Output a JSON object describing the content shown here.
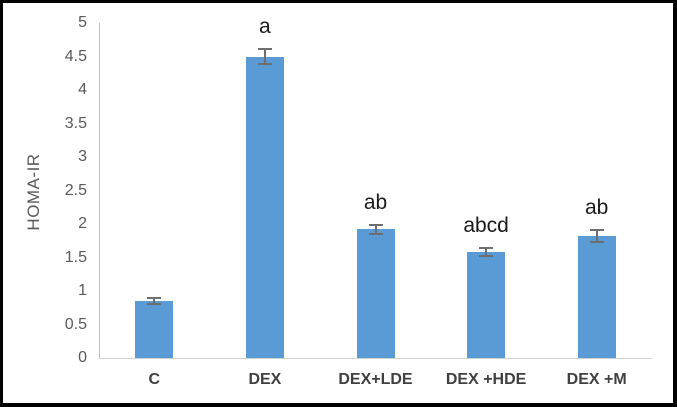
{
  "chart_data": {
    "type": "bar",
    "title": "",
    "xlabel": "",
    "ylabel": "HOMA-IR",
    "categories": [
      "C",
      "DEX",
      "DEX+LDE",
      "DEX +HDE",
      "DEX +M"
    ],
    "values": [
      0.85,
      4.5,
      1.92,
      1.58,
      1.82
    ],
    "error_bars": [
      0.06,
      0.12,
      0.08,
      0.08,
      0.1
    ],
    "annotations": [
      "",
      "a",
      "ab",
      "abcd",
      "ab"
    ],
    "ylim": [
      0,
      5
    ],
    "ytick_labels": [
      "0",
      "0.5",
      "1",
      "1.5",
      "2",
      "2.5",
      "3",
      "3.5",
      "4",
      "4.5",
      "5"
    ],
    "grid": false,
    "legend_position": "none",
    "colors": {
      "bar": "#5b9bd5",
      "error_bar": "#6e6e6e",
      "axis_line": "#bfbfbf",
      "tick_text": "#595959",
      "category_text": "#404040",
      "annotation_text": "#1a1a1a",
      "frame_border": "#000000",
      "background": "#ffffff"
    }
  }
}
